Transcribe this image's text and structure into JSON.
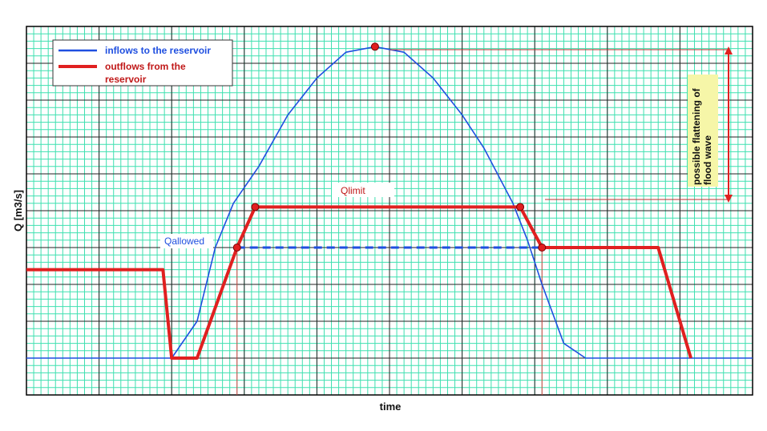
{
  "chart_data": {
    "type": "line",
    "title": "",
    "xlabel": "time",
    "ylabel": "Q [m3/s]",
    "xlim": [
      0,
      100
    ],
    "ylim": [
      0,
      100
    ],
    "grid": true,
    "legend_position": "top-left",
    "series": [
      {
        "name": "inflows to the reservoir",
        "color": "#1f4fe0",
        "style": "thin-solid",
        "points": [
          [
            0,
            10
          ],
          [
            20,
            10
          ],
          [
            23.5,
            20
          ],
          [
            26,
            40
          ],
          [
            28.5,
            52
          ],
          [
            32,
            62
          ],
          [
            36,
            76
          ],
          [
            40,
            86
          ],
          [
            44,
            93
          ],
          [
            48,
            94.5
          ],
          [
            52,
            93
          ],
          [
            56,
            86
          ],
          [
            60,
            76
          ],
          [
            63,
            67
          ],
          [
            67,
            52
          ],
          [
            69,
            42
          ],
          [
            71,
            30
          ],
          [
            74,
            14
          ],
          [
            77,
            10
          ],
          [
            100,
            10
          ]
        ]
      },
      {
        "name": "outflows from the reservoir",
        "color": "#e02020",
        "style": "thick-solid",
        "points": [
          [
            0,
            34
          ],
          [
            18.8,
            34
          ],
          [
            20,
            10
          ],
          [
            23.5,
            10
          ],
          [
            29,
            40
          ],
          [
            31.5,
            51
          ],
          [
            68,
            51
          ],
          [
            71,
            40
          ],
          [
            87,
            40
          ],
          [
            91.5,
            10
          ]
        ]
      },
      {
        "name": "Qallowed",
        "color": "#1f4fe0",
        "style": "dashed",
        "points": [
          [
            29,
            40
          ],
          [
            71,
            40
          ]
        ]
      }
    ],
    "markers": [
      [
        48,
        94.5
      ],
      [
        29,
        40
      ],
      [
        31.5,
        51
      ],
      [
        68,
        51
      ],
      [
        71,
        40
      ]
    ],
    "annotations": {
      "qlimit": "Qlimit",
      "qallowed": "Qallowed",
      "flattening": "possible flattening of flood wave"
    }
  }
}
